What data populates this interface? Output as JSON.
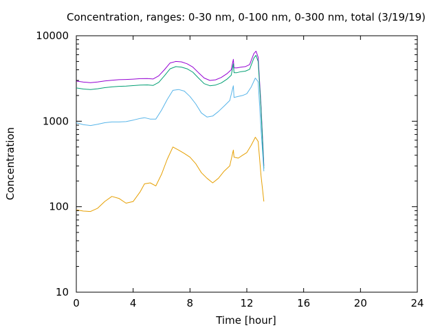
{
  "chart_data": {
    "type": "line",
    "title": "Concentration, ranges: 0-30 nm, 0-100 nm, 0-300 nm, total (3/19/19)",
    "xlabel": "Time [hour]",
    "ylabel": "Concentration",
    "xlim": [
      0,
      24
    ],
    "ylim": [
      10,
      10000
    ],
    "yscale": "log",
    "xticks": [
      0,
      4,
      8,
      12,
      16,
      20,
      24
    ],
    "yticks": [
      10,
      100,
      1000,
      10000
    ],
    "legend": "none",
    "grid": false,
    "series": [
      {
        "color": "#9400d3",
        "x": [
          0,
          0.5,
          1,
          1.5,
          2,
          2.5,
          3,
          3.5,
          4,
          4.5,
          5,
          5.4,
          5.8,
          6.2,
          6.6,
          7.0,
          7.4,
          7.8,
          8.2,
          8.6,
          9.0,
          9.4,
          9.8,
          10.2,
          10.6,
          10.9,
          11.05,
          11.1,
          11.3,
          11.6,
          11.9,
          12.2,
          12.5,
          12.65,
          12.8,
          13.0,
          13.2
        ],
        "values": [
          2950,
          2870,
          2830,
          2880,
          2960,
          3020,
          3060,
          3080,
          3110,
          3150,
          3160,
          3120,
          3400,
          4000,
          4800,
          5000,
          4950,
          4700,
          4300,
          3700,
          3200,
          3000,
          3050,
          3250,
          3600,
          4000,
          5300,
          4200,
          4200,
          4300,
          4350,
          4600,
          6200,
          6600,
          5600,
          1500,
          300
        ]
      },
      {
        "color": "#009e73",
        "x": [
          0,
          0.5,
          1,
          1.5,
          2,
          2.5,
          3,
          3.5,
          4,
          4.5,
          5,
          5.4,
          5.8,
          6.2,
          6.6,
          7.0,
          7.4,
          7.8,
          8.2,
          8.6,
          9.0,
          9.4,
          9.8,
          10.2,
          10.6,
          10.9,
          11.05,
          11.1,
          11.3,
          11.6,
          11.9,
          12.2,
          12.5,
          12.65,
          12.8,
          13.0,
          13.2
        ],
        "values": [
          2450,
          2380,
          2350,
          2400,
          2470,
          2520,
          2560,
          2580,
          2610,
          2650,
          2660,
          2620,
          2850,
          3400,
          4100,
          4350,
          4300,
          4100,
          3750,
          3200,
          2750,
          2600,
          2650,
          2800,
          3100,
          3450,
          4700,
          3700,
          3700,
          3800,
          3850,
          4050,
          5500,
          5900,
          5000,
          1400,
          280
        ]
      },
      {
        "color": "#56b4e9",
        "x": [
          0,
          0.5,
          1,
          1.5,
          2,
          2.5,
          3,
          3.5,
          4,
          4.5,
          4.8,
          5.2,
          5.6,
          6.0,
          6.4,
          6.8,
          7.2,
          7.6,
          8.0,
          8.4,
          8.8,
          9.2,
          9.6,
          10.0,
          10.4,
          10.8,
          11.05,
          11.1,
          11.4,
          11.7,
          12.0,
          12.3,
          12.6,
          12.8,
          13.0,
          13.2
        ],
        "values": [
          960,
          910,
          890,
          920,
          960,
          980,
          980,
          990,
          1030,
          1080,
          1100,
          1060,
          1060,
          1350,
          1800,
          2300,
          2350,
          2250,
          1950,
          1600,
          1250,
          1120,
          1150,
          1300,
          1500,
          1750,
          2600,
          1900,
          1950,
          2000,
          2100,
          2500,
          3200,
          2900,
          800,
          260
        ]
      },
      {
        "color": "#e69f00",
        "x": [
          0,
          0.5,
          1,
          1.5,
          2,
          2.5,
          3,
          3.5,
          4,
          4.5,
          4.8,
          5.2,
          5.6,
          6.0,
          6.4,
          6.8,
          7.2,
          7.6,
          8.0,
          8.4,
          8.8,
          9.2,
          9.6,
          10.0,
          10.4,
          10.8,
          11.05,
          11.1,
          11.4,
          11.7,
          12.0,
          12.3,
          12.6,
          12.8,
          13.0,
          13.2
        ],
        "values": [
          92,
          89,
          88,
          96,
          115,
          132,
          125,
          110,
          115,
          150,
          185,
          190,
          175,
          240,
          360,
          500,
          460,
          420,
          380,
          320,
          250,
          215,
          190,
          215,
          260,
          300,
          460,
          380,
          370,
          400,
          430,
          520,
          650,
          580,
          230,
          115
        ]
      }
    ]
  }
}
